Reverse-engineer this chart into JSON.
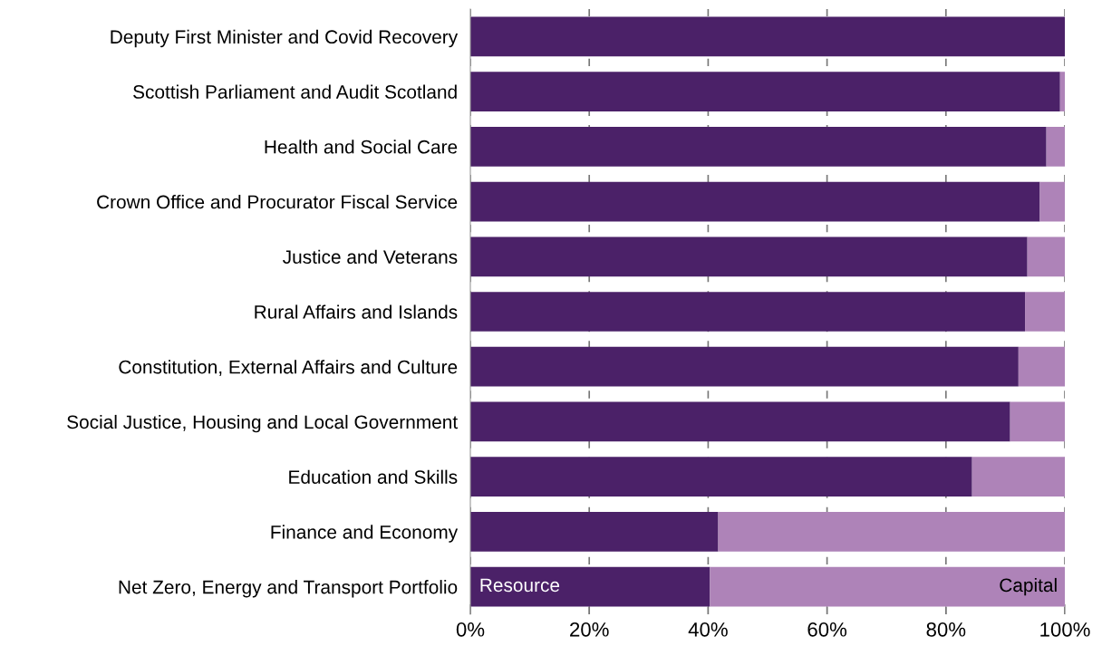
{
  "chart_data": {
    "type": "bar",
    "orientation": "horizontal",
    "stacked": true,
    "categories": [
      "Deputy First Minister and Covid Recovery",
      "Scottish Parliament and Audit Scotland",
      "Health and Social Care",
      "Crown Office and Procurator Fiscal Service",
      "Justice and Veterans",
      "Rural Affairs and Islands",
      "Constitution, External Affairs and Culture",
      "Social Justice, Housing and Local Government",
      "Education and Skills",
      "Finance and Economy",
      "Net Zero, Energy and Transport Portfolio"
    ],
    "series": [
      {
        "name": "Resource",
        "color": "#4b2168",
        "values": [
          100,
          99.2,
          96.9,
          95.8,
          93.7,
          93.3,
          92.2,
          90.8,
          84.4,
          41.7,
          40.3
        ]
      },
      {
        "name": "Capital",
        "color": "#ae83b8",
        "values": [
          0,
          0.8,
          3.1,
          4.2,
          6.3,
          6.7,
          7.8,
          9.2,
          15.6,
          58.3,
          59.7
        ]
      }
    ],
    "xlim": [
      0,
      100
    ],
    "xticks": [
      {
        "value": 0,
        "label": "0%"
      },
      {
        "value": 20,
        "label": "20%"
      },
      {
        "value": 40,
        "label": "40%"
      },
      {
        "value": 60,
        "label": "60%"
      },
      {
        "value": 80,
        "label": "80%"
      },
      {
        "value": 100,
        "label": "100%"
      }
    ],
    "grid": "x",
    "legend": false
  }
}
